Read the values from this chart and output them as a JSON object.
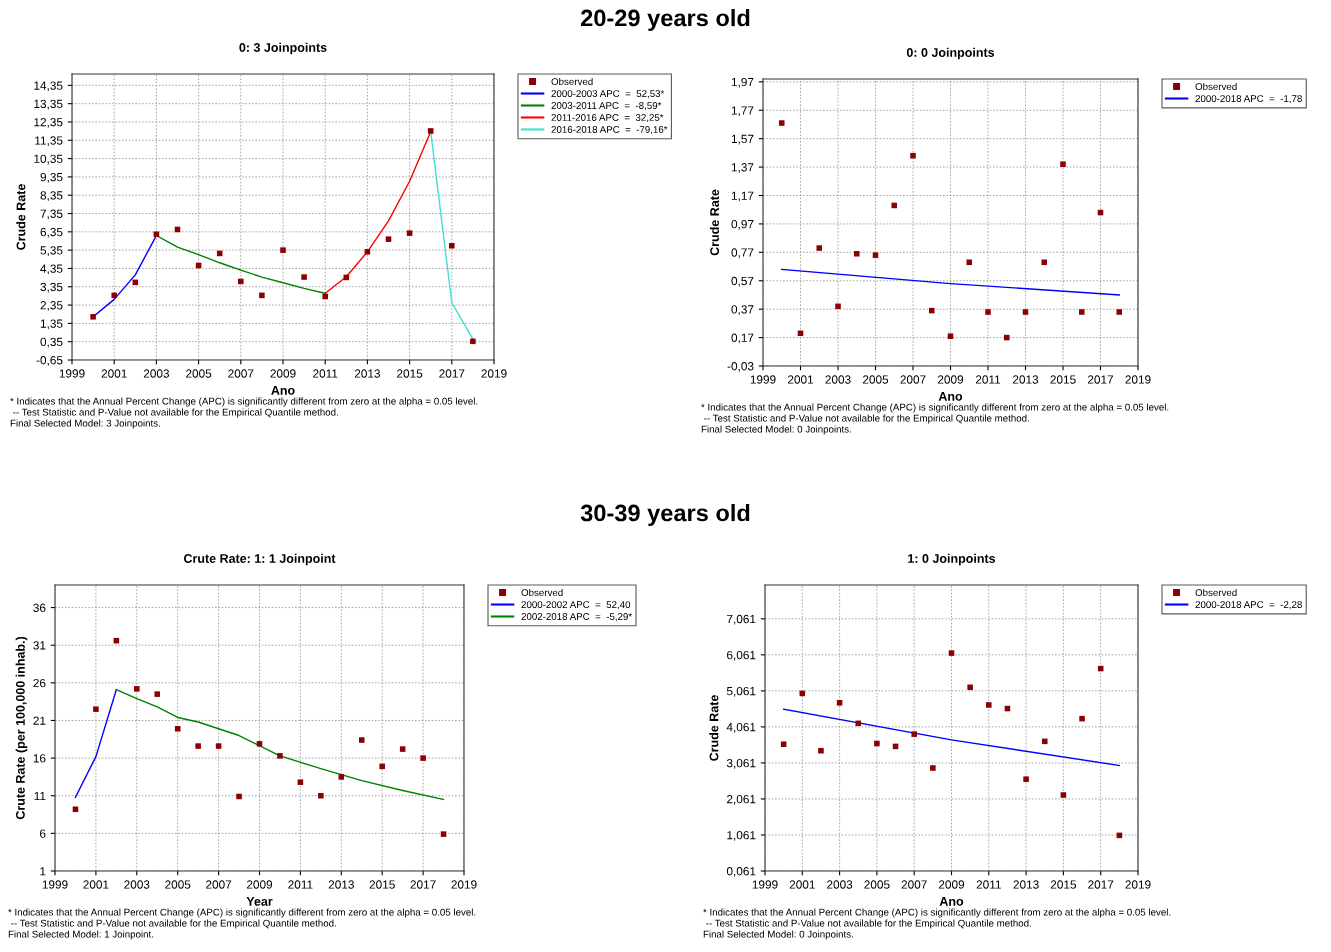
{
  "chart_data": [
    {
      "type": "other",
      "title": "20-29 years old"
    },
    {
      "type": "scatter",
      "subtitle": "0: 3 Joinpoints",
      "xlabel": "Ano",
      "ylabel": "Crude Rate",
      "x": [
        2000,
        2001,
        2002,
        2003,
        2004,
        2005,
        2006,
        2007,
        2008,
        2009,
        2010,
        2011,
        2012,
        2013,
        2014,
        2015,
        2016,
        2017,
        2018
      ],
      "series": [
        {
          "name": "Observed",
          "marker": "square",
          "color": "#8b0000",
          "values": [
            1.71,
            2.88,
            3.59,
            6.22,
            6.48,
            4.51,
            5.17,
            3.64,
            2.88,
            5.35,
            3.88,
            2.82,
            3.86,
            5.26,
            5.95,
            6.28,
            11.86,
            5.59,
            0.37
          ]
        },
        {
          "name": "2000-2003 APC  =  52,53*",
          "type": "line",
          "marker": "none",
          "color": "#0000ff",
          "x": [
            2000,
            2001,
            2002,
            2003
          ],
          "values": [
            1.71,
            2.66,
            4.0,
            6.15
          ]
        },
        {
          "name": "2003-2011 APC  =  -8,59*",
          "type": "line",
          "marker": "none",
          "color": "#008000",
          "x": [
            2003,
            2004,
            2005,
            2006,
            2007,
            2008,
            2009,
            2010,
            2011
          ],
          "values": [
            6.15,
            5.51,
            5.1,
            4.66,
            4.26,
            3.88,
            3.57,
            3.26,
            2.99
          ]
        },
        {
          "name": "2011-2016 APC  =  32,25*",
          "type": "line",
          "marker": "none",
          "color": "#ff0000",
          "x": [
            2011,
            2012,
            2013,
            2014,
            2015,
            2016
          ],
          "values": [
            2.99,
            3.9,
            5.26,
            6.95,
            9.11,
            11.82
          ]
        },
        {
          "name": "2016-2018 APC  =  -79,16*",
          "type": "line",
          "marker": "none",
          "color": "#40e0d0",
          "x": [
            2016,
            2017,
            2018
          ],
          "values": [
            11.82,
            2.48,
            0.5
          ]
        }
      ],
      "xlim": [
        1999,
        2019
      ],
      "xticks": [
        1999,
        2001,
        2003,
        2005,
        2007,
        2009,
        2011,
        2013,
        2015,
        2017,
        2019
      ],
      "ylim": [
        -0.65,
        14.97
      ],
      "yticks": [
        {
          "value": -0.65,
          "label": "-0,65"
        },
        {
          "value": 0.35,
          "label": "0,35"
        },
        {
          "value": 1.35,
          "label": "1,35"
        },
        {
          "value": 2.35,
          "label": "2,35"
        },
        {
          "value": 3.35,
          "label": "3,35"
        },
        {
          "value": 4.35,
          "label": "4,35"
        },
        {
          "value": 5.35,
          "label": "5,35"
        },
        {
          "value": 6.35,
          "label": "6,35"
        },
        {
          "value": 7.35,
          "label": "7,35"
        },
        {
          "value": 8.35,
          "label": "8,35"
        },
        {
          "value": 9.35,
          "label": "9,35"
        },
        {
          "value": 10.35,
          "label": "10,35"
        },
        {
          "value": 11.35,
          "label": "11,35"
        },
        {
          "value": 12.35,
          "label": "12,35"
        },
        {
          "value": 13.35,
          "label": "13,35"
        },
        {
          "value": 14.35,
          "label": "14,35"
        }
      ],
      "grid": true,
      "legend": "top right",
      "annotations": [
        "* Indicates that the Annual Percent Change (APC) is significantly different from zero at the alpha = 0.05 level.",
        " -- Test Statistic and P-Value not available for the Empirical Quantile method.",
        "Final Selected Model: 3 Joinpoints."
      ]
    },
    {
      "type": "scatter",
      "subtitle": "0: 0 Joinpoints",
      "xlabel": "Ano",
      "ylabel": "Crude Rate",
      "x": [
        2000,
        2001,
        2002,
        2003,
        2004,
        2005,
        2006,
        2007,
        2008,
        2009,
        2010,
        2011,
        2012,
        2013,
        2014,
        2015,
        2016,
        2017,
        2018
      ],
      "series": [
        {
          "name": "Observed",
          "marker": "square",
          "color": "#8b0000",
          "values": [
            1.68,
            0.2,
            0.8,
            0.39,
            0.76,
            0.75,
            1.1,
            1.45,
            0.36,
            0.18,
            0.7,
            0.35,
            0.17,
            0.35,
            0.7,
            1.39,
            0.35,
            1.05,
            0.35
          ]
        },
        {
          "name": "2000-2018 APC  =  -1,78",
          "type": "line",
          "marker": "none",
          "color": "#0000ff",
          "x": [
            2000,
            2009,
            2018
          ],
          "values": [
            0.65,
            0.55,
            0.47
          ]
        }
      ],
      "xlim": [
        1999,
        2019
      ],
      "xticks": [
        1999,
        2001,
        2003,
        2005,
        2007,
        2009,
        2011,
        2013,
        2015,
        2017,
        2019
      ],
      "ylim": [
        -0.03,
        1.99
      ],
      "yticks": [
        {
          "value": -0.03,
          "label": "-0,03"
        },
        {
          "value": 0.17,
          "label": "0,17"
        },
        {
          "value": 0.37,
          "label": "0,37"
        },
        {
          "value": 0.57,
          "label": "0,57"
        },
        {
          "value": 0.77,
          "label": "0,77"
        },
        {
          "value": 0.97,
          "label": "0,97"
        },
        {
          "value": 1.17,
          "label": "1,17"
        },
        {
          "value": 1.37,
          "label": "1,37"
        },
        {
          "value": 1.57,
          "label": "1,57"
        },
        {
          "value": 1.77,
          "label": "1,77"
        },
        {
          "value": 1.97,
          "label": "1,97"
        }
      ],
      "grid": true,
      "legend": "top right",
      "annotations": [
        "* Indicates that the Annual Percent Change (APC) is significantly different from zero at the alpha = 0.05 level.",
        " -- Test Statistic and P-Value not available for the Empirical Quantile method.",
        "Final Selected Model: 0 Joinpoints."
      ]
    },
    {
      "type": "other",
      "title": "30-39 years old"
    },
    {
      "type": "scatter",
      "subtitle": "Crute Rate: 1: 1 Joinpoint",
      "xlabel": "Year",
      "ylabel": "Crute Rate (per 100,000 inhab.)",
      "x": [
        2000,
        2001,
        2002,
        2003,
        2004,
        2005,
        2006,
        2007,
        2008,
        2009,
        2010,
        2011,
        2012,
        2013,
        2014,
        2015,
        2016,
        2017,
        2018
      ],
      "series": [
        {
          "name": "Observed",
          "marker": "square",
          "color": "#8b0000",
          "values": [
            9.2,
            22.5,
            31.6,
            25.2,
            24.5,
            19.9,
            17.6,
            17.6,
            10.9,
            17.9,
            16.3,
            12.8,
            11.0,
            13.5,
            18.4,
            14.9,
            17.2,
            16.0,
            5.9
          ]
        },
        {
          "name": "2000-2002 APC  =  52,40",
          "type": "line",
          "marker": "none",
          "color": "#0000ff",
          "x": [
            2000,
            2001,
            2002
          ],
          "values": [
            10.8,
            16.2,
            25.1
          ]
        },
        {
          "name": "2002-2018 APC  =  -5,29*",
          "type": "line",
          "marker": "none",
          "color": "#008000",
          "x": [
            2002,
            2003,
            2004,
            2005,
            2006,
            2008,
            2010,
            2012,
            2014,
            2016,
            2018
          ],
          "values": [
            25.1,
            23.9,
            22.8,
            21.4,
            20.8,
            19.0,
            16.3,
            14.6,
            13.0,
            11.7,
            10.5
          ]
        }
      ],
      "xlim": [
        1999,
        2019
      ],
      "xticks": [
        1999,
        2001,
        2003,
        2005,
        2007,
        2009,
        2011,
        2013,
        2015,
        2017,
        2019
      ],
      "ylim": [
        1,
        39
      ],
      "yticks": [
        1,
        6,
        11,
        16,
        21,
        26,
        31,
        36
      ],
      "grid": true,
      "legend": "top right",
      "annotations": [
        "* Indicates that the Annual Percent Change (APC) is significantly different from zero at the alpha = 0.05 level.",
        " -- Test Statistic and P-Value not available for the Empirical Quantile method.",
        "Final Selected Model: 1 Joinpoint."
      ]
    },
    {
      "type": "scatter",
      "subtitle": "1: 0 Joinpoints",
      "xlabel": "Ano",
      "ylabel": "Crude Rate",
      "x": [
        2000,
        2001,
        2002,
        2003,
        2004,
        2005,
        2006,
        2007,
        2008,
        2009,
        2010,
        2011,
        2012,
        2013,
        2014,
        2015,
        2016,
        2017,
        2018
      ],
      "series": [
        {
          "name": "Observed",
          "marker": "square",
          "color": "#8b0000",
          "values": [
            3.58,
            4.99,
            3.4,
            4.73,
            4.16,
            3.6,
            3.52,
            3.86,
            2.92,
            6.11,
            5.16,
            4.67,
            4.57,
            2.61,
            3.66,
            2.17,
            4.29,
            5.68,
            1.05
          ]
        },
        {
          "name": "2000-2018 APC  =  -2,28",
          "type": "line",
          "marker": "none",
          "color": "#0000ff",
          "x": [
            2000,
            2009,
            2018
          ],
          "values": [
            4.55,
            3.7,
            2.99
          ]
        }
      ],
      "xlim": [
        1999,
        2019
      ],
      "xticks": [
        1999,
        2001,
        2003,
        2005,
        2007,
        2009,
        2011,
        2013,
        2015,
        2017,
        2019
      ],
      "ylim": [
        0.061,
        8.0
      ],
      "yticks": [
        {
          "value": 0.061,
          "label": "0,061"
        },
        {
          "value": 1.061,
          "label": "1,061"
        },
        {
          "value": 2.061,
          "label": "2,061"
        },
        {
          "value": 3.061,
          "label": "3,061"
        },
        {
          "value": 4.061,
          "label": "4,061"
        },
        {
          "value": 5.061,
          "label": "5,061"
        },
        {
          "value": 6.061,
          "label": "6,061"
        },
        {
          "value": 7.061,
          "label": "7,061"
        }
      ],
      "grid": true,
      "legend": "top right",
      "annotations": [
        "* Indicates that the Annual Percent Change (APC) is significantly different from zero at the alpha = 0.05 level.",
        " -- Test Statistic and P-Value not available for the Empirical Quantile method.",
        "Final Selected Model: 0 Joinpoints."
      ]
    }
  ]
}
